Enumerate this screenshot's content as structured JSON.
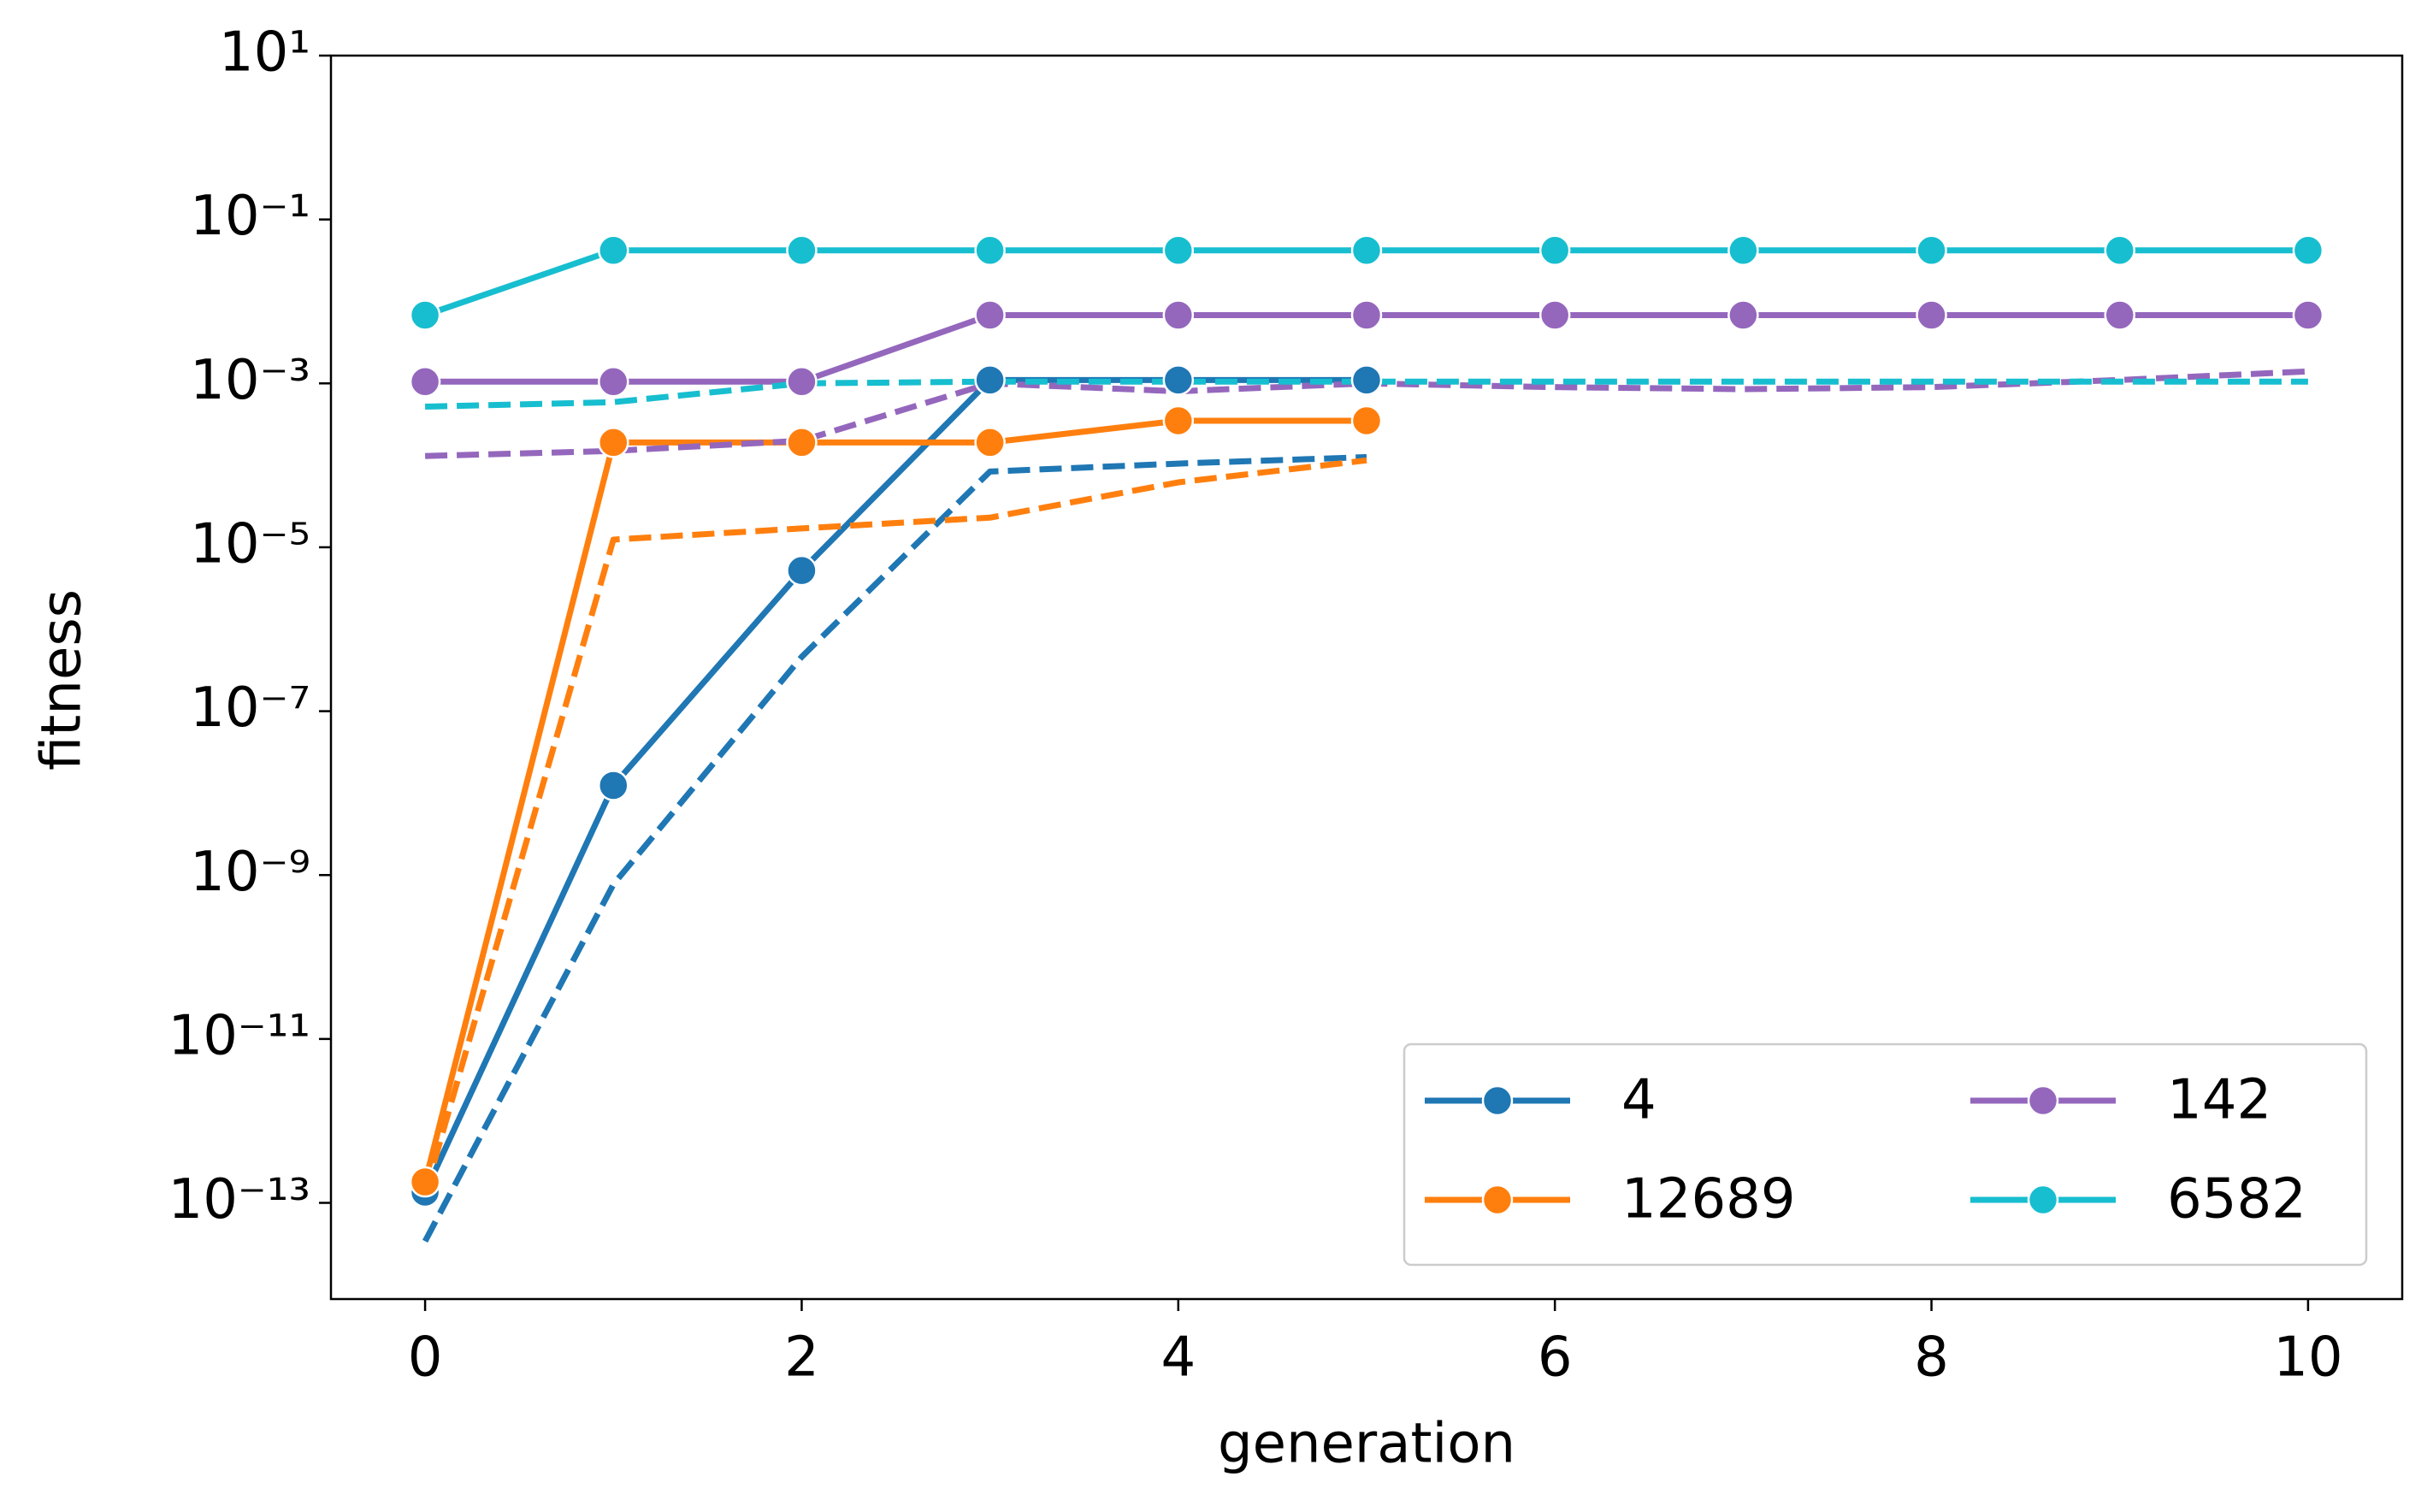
{
  "chart_data": {
    "type": "line",
    "xlabel": "generation",
    "ylabel": "fitness",
    "x": [
      0,
      1,
      2,
      3,
      4,
      5,
      6,
      7,
      8,
      9,
      10
    ],
    "xlim": [
      -0.5,
      10.5
    ],
    "xticks": [
      0,
      2,
      4,
      6,
      8,
      10
    ],
    "ylim": [
      6.7e-15,
      10
    ],
    "yscale": "log",
    "yticks": [
      {
        "value": 10,
        "label": "10¹"
      },
      {
        "value": 0.1,
        "label": "10⁻¹"
      },
      {
        "value": 0.001,
        "label": "10⁻³"
      },
      {
        "value": 1e-05,
        "label": "10⁻⁵"
      },
      {
        "value": 1e-07,
        "label": "10⁻⁷"
      },
      {
        "value": 1e-09,
        "label": "10⁻⁹"
      },
      {
        "value": 1e-11,
        "label": "10⁻¹¹"
      },
      {
        "value": 1e-13,
        "label": "10⁻¹³"
      }
    ],
    "legend": "lower right",
    "series": [
      {
        "name": "4",
        "color": "#1f77b4",
        "style": "solid",
        "marker": true,
        "values": [
          1.35e-13,
          1.24e-08,
          5.2e-06,
          0.0011,
          0.0011,
          0.0011,
          null,
          null,
          null,
          null,
          null
        ]
      },
      {
        "color": "#1f77b4",
        "style": "dashed",
        "marker": false,
        "values": [
          3.4e-14,
          7.7e-10,
          4.6e-07,
          8.4e-05,
          0.000105,
          0.000126,
          null,
          null,
          null,
          null,
          null
        ]
      },
      {
        "name": "12689",
        "color": "#ff7f0e",
        "style": "solid",
        "marker": true,
        "values": [
          1.8e-13,
          0.00019,
          0.00019,
          0.00019,
          0.00035,
          0.00035,
          null,
          null,
          null,
          null,
          null
        ]
      },
      {
        "color": "#ff7f0e",
        "style": "dashed",
        "marker": false,
        "values": [
          1.3e-13,
          1.24e-05,
          1.7e-05,
          2.3e-05,
          6.2e-05,
          0.000115,
          null,
          null,
          null,
          null,
          null
        ]
      },
      {
        "name": "142",
        "color": "#9467bd",
        "style": "solid",
        "marker": true,
        "values": [
          0.00105,
          0.00105,
          0.00105,
          0.0068,
          0.0068,
          0.0068,
          0.0068,
          0.0068,
          0.0068,
          0.0068,
          0.0068
        ]
      },
      {
        "color": "#9467bd",
        "style": "dashed",
        "marker": false,
        "values": [
          0.00013,
          0.00015,
          0.0002,
          0.001,
          0.0008,
          0.001,
          0.0009,
          0.00085,
          0.0009,
          0.0011,
          0.0014
        ]
      },
      {
        "name": "6582",
        "color": "#17becf",
        "style": "solid",
        "marker": true,
        "values": [
          0.0068,
          0.042,
          0.042,
          0.042,
          0.042,
          0.042,
          0.042,
          0.042,
          0.042,
          0.042,
          0.042
        ]
      },
      {
        "color": "#17becf",
        "style": "dashed",
        "marker": false,
        "values": [
          0.00052,
          0.00059,
          0.001,
          0.00105,
          0.00105,
          0.00105,
          0.00105,
          0.00105,
          0.00105,
          0.00105,
          0.00105
        ]
      }
    ]
  }
}
